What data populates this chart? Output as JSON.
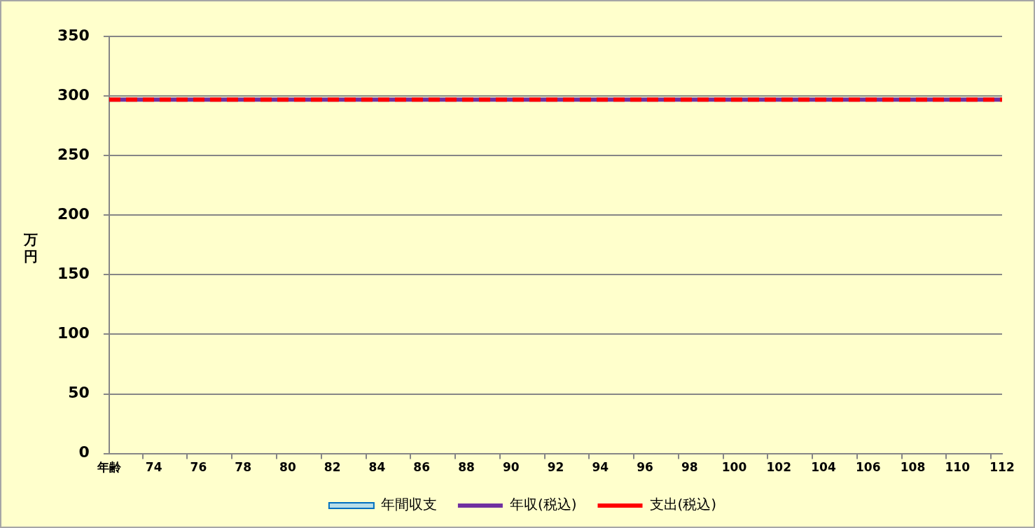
{
  "chart_data": {
    "type": "line",
    "categories": [
      "年齢",
      null,
      "74",
      null,
      "76",
      null,
      "78",
      null,
      "80",
      null,
      "82",
      null,
      "84",
      null,
      "86",
      null,
      "88",
      null,
      "90",
      null,
      "92",
      null,
      "94",
      null,
      "96",
      null,
      "98",
      null,
      "100",
      null,
      "102",
      null,
      "104",
      null,
      "106",
      null,
      "108",
      null,
      "110",
      null,
      "112"
    ],
    "ylabel": "万円",
    "ylim": [
      0,
      350
    ],
    "yticks": [
      0,
      50,
      100,
      150,
      200,
      250,
      300,
      350
    ],
    "grid": "y",
    "legend": "bottom",
    "series": [
      {
        "name": "年間収支",
        "type": "bar",
        "color": "#b7dde8",
        "values": [
          0,
          0,
          0,
          0,
          0,
          0,
          0,
          0,
          0,
          0,
          0,
          0,
          0,
          0,
          0,
          0,
          0,
          0,
          0,
          0,
          0,
          0,
          0,
          0,
          0,
          0,
          0,
          0,
          0,
          0,
          0,
          0,
          0,
          0,
          0,
          0,
          0,
          0,
          0,
          0,
          0
        ]
      },
      {
        "name": "年収(税込)",
        "color": "#7030a0",
        "line_style": "solid",
        "values": [
          297,
          297,
          297,
          297,
          297,
          297,
          297,
          297,
          297,
          297,
          297,
          297,
          297,
          297,
          297,
          297,
          297,
          297,
          297,
          297,
          297,
          297,
          297,
          297,
          297,
          297,
          297,
          297,
          297,
          297,
          297,
          297,
          297,
          297,
          297,
          297,
          297,
          297,
          297,
          297,
          297
        ]
      },
      {
        "name": "支出(税込)",
        "color": "#ff0000",
        "line_style": "dashed",
        "values": [
          297,
          297,
          297,
          297,
          297,
          297,
          297,
          297,
          297,
          297,
          297,
          297,
          297,
          297,
          297,
          297,
          297,
          297,
          297,
          297,
          297,
          297,
          297,
          297,
          297,
          297,
          297,
          297,
          297,
          297,
          297,
          297,
          297,
          297,
          297,
          297,
          297,
          297,
          297,
          297,
          297
        ]
      }
    ]
  }
}
